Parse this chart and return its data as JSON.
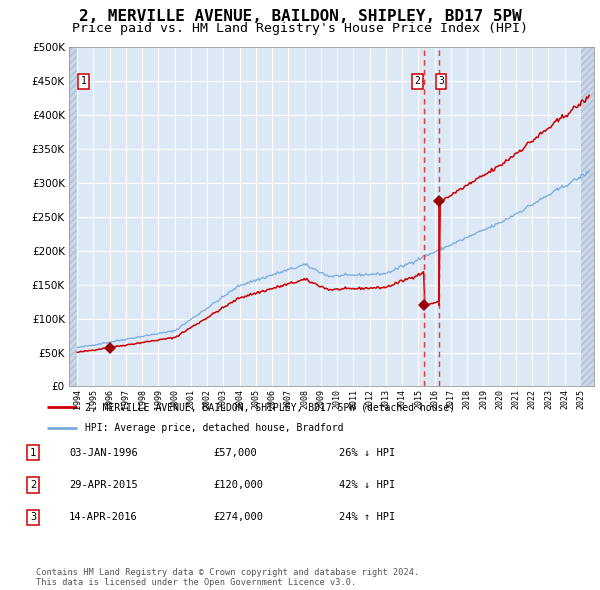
{
  "title": "2, MERVILLE AVENUE, BAILDON, SHIPLEY, BD17 5PW",
  "subtitle": "Price paid vs. HM Land Registry's House Price Index (HPI)",
  "title_fontsize": 11.5,
  "subtitle_fontsize": 9.5,
  "plot_bg_color": "#dce8f5",
  "hatch_color": "#c8d8e8",
  "grid_color": "#ffffff",
  "red_line_color": "#cc0000",
  "blue_line_color": "#7aaadd",
  "vline_color": "#ee3333",
  "marker_color": "#990000",
  "sale_points": [
    {
      "date_num": 1996.04,
      "price": 57000,
      "label": "1"
    },
    {
      "date_num": 2015.33,
      "price": 120000,
      "label": "2"
    },
    {
      "date_num": 2016.29,
      "price": 274000,
      "label": "3"
    }
  ],
  "vlines": [
    2015.33,
    2016.29
  ],
  "table_entries": [
    {
      "num": "1",
      "date": "03-JAN-1996",
      "price": "£57,000",
      "change": "26% ↓ HPI"
    },
    {
      "num": "2",
      "date": "29-APR-2015",
      "price": "£120,000",
      "change": "42% ↓ HPI"
    },
    {
      "num": "3",
      "date": "14-APR-2016",
      "price": "£274,000",
      "change": "24% ↑ HPI"
    }
  ],
  "legend_entries": [
    "2, MERVILLE AVENUE, BAILDON, SHIPLEY, BD17 5PW (detached house)",
    "HPI: Average price, detached house, Bradford"
  ],
  "footnote": "Contains HM Land Registry data © Crown copyright and database right 2024.\nThis data is licensed under the Open Government Licence v3.0.",
  "ylim": [
    0,
    500000
  ],
  "yticks": [
    0,
    50000,
    100000,
    150000,
    200000,
    250000,
    300000,
    350000,
    400000,
    450000,
    500000
  ],
  "xlim_start": 1993.5,
  "xlim_end": 2025.8
}
